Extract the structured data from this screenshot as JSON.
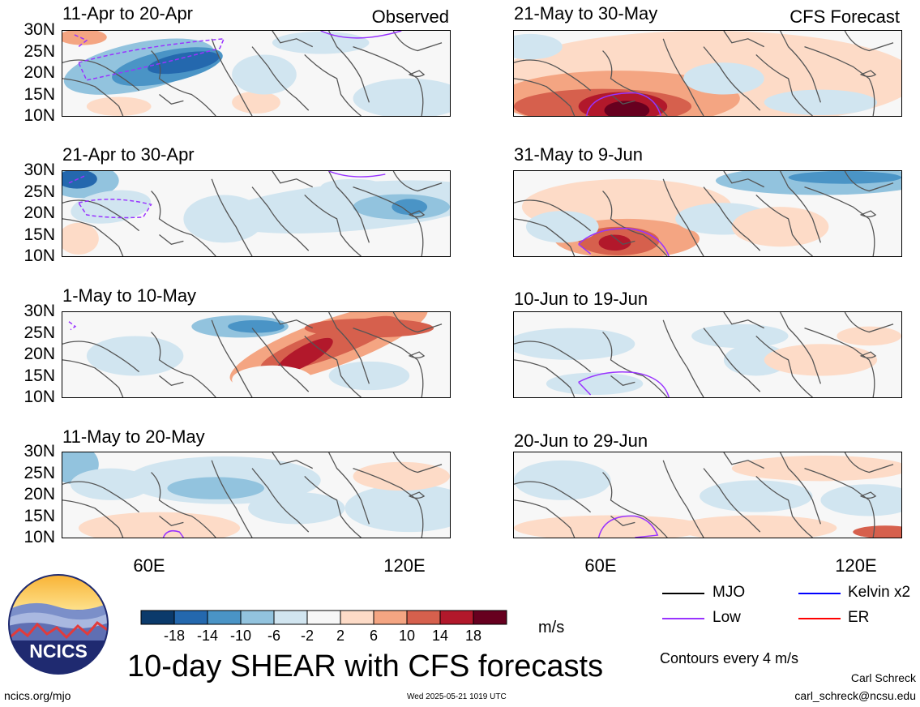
{
  "panels": [
    {
      "title": "11-Apr to 20-Apr",
      "tag": "Observed",
      "pattern": "o1"
    },
    {
      "title": "21-Apr to 30-Apr",
      "tag": "",
      "pattern": "o2"
    },
    {
      "title": "1-May to 10-May",
      "tag": "",
      "pattern": "o3"
    },
    {
      "title": "11-May to 20-May",
      "tag": "",
      "pattern": "o4"
    },
    {
      "title": "21-May to 30-May",
      "tag": "CFS Forecast",
      "pattern": "f1"
    },
    {
      "title": "31-May to 9-Jun",
      "tag": "",
      "pattern": "f2"
    },
    {
      "title": "10-Jun to 19-Jun",
      "tag": "",
      "pattern": "f3"
    },
    {
      "title": "20-Jun to 29-Jun",
      "tag": "",
      "pattern": "f4"
    }
  ],
  "lat_labels": [
    "30N",
    "25N",
    "20N",
    "15N",
    "10N"
  ],
  "lon_labels": [
    "60E",
    "120E"
  ],
  "colorbar": {
    "levels": [
      "-18",
      "-14",
      "-10",
      "-6",
      "-2",
      "2",
      "6",
      "10",
      "14",
      "18"
    ],
    "colors": [
      "#0b3a6b",
      "#2468ae",
      "#4a94c6",
      "#92c3de",
      "#d1e5f0",
      "#f7f7f7",
      "#fddbc7",
      "#f4a582",
      "#d6604d",
      "#b2182b",
      "#67001f"
    ],
    "unit": "m/s"
  },
  "legend": [
    {
      "label": "MJO",
      "color": "#000000"
    },
    {
      "label": "Kelvin x2",
      "color": "#0000ff"
    },
    {
      "label": "Low",
      "color": "#9933ff"
    },
    {
      "label": "ER",
      "color": "#ff0000"
    }
  ],
  "contour_note": "Contours every 4 m/s",
  "main_title": "10-day SHEAR with CFS forecasts",
  "logo_text": "NCICS",
  "footer": {
    "url": "ncics.org/mjo",
    "timestamp": "Wed 2025-05-21 1019 UTC",
    "author": "Carl Schreck",
    "email": "carl_schreck@ncsu.edu"
  }
}
